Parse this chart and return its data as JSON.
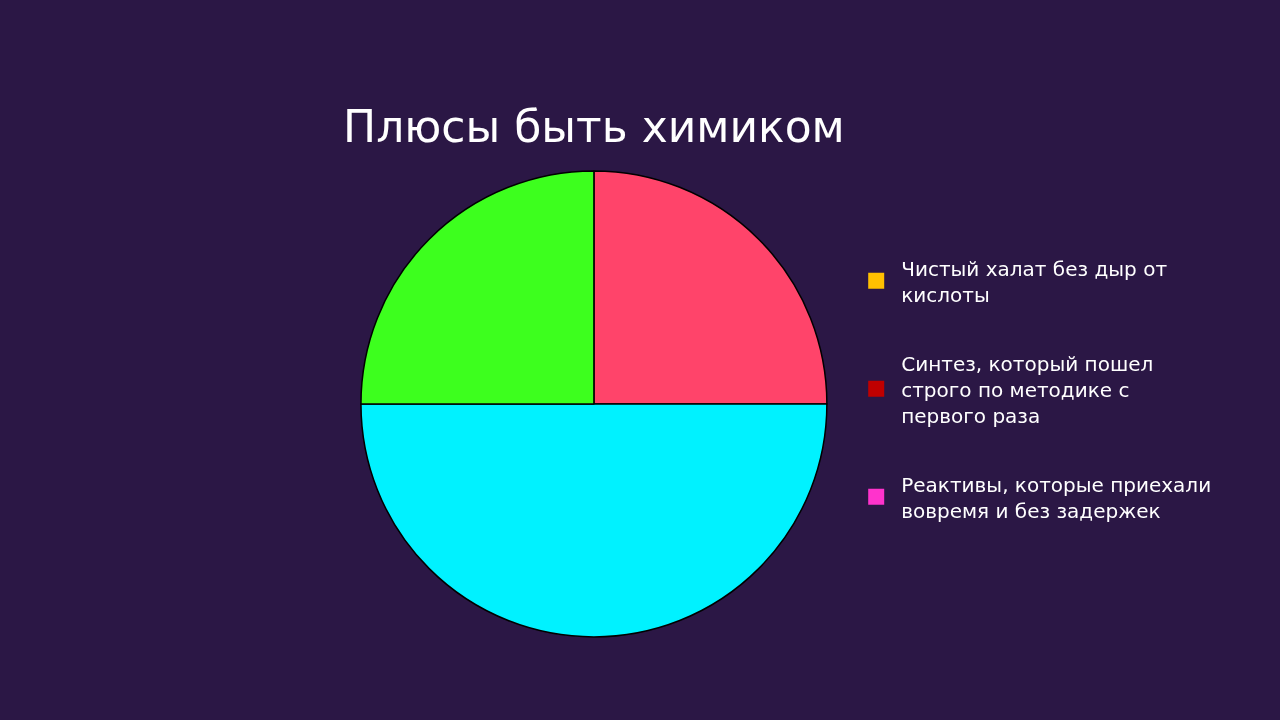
{
  "chart_data": [
    {
      "type": "pie",
      "title": "Плюсы быть химиком",
      "categories": [
        null,
        null,
        null
      ],
      "values": [
        25,
        50,
        25
      ],
      "colors": [
        "#ff446a",
        "#00f2ff",
        "#3dff1e"
      ]
    },
    {
      "type": "other",
      "categories": [
        "Чистый халат без дыр от кислоты",
        "Синтез, который пошел строго по методике с первого раза",
        "Реактивы, которые приехали вовремя и без задержек"
      ],
      "colors": [
        "#ffc000",
        "#c00000",
        "#ff33cc"
      ]
    }
  ]
}
